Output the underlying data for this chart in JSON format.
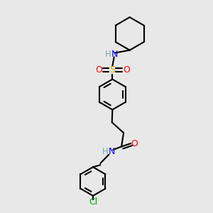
{
  "background_color": "#e8e8e8",
  "bond_color": "#000000",
  "colors": {
    "N": "#0000ff",
    "O": "#ff0000",
    "S": "#ccaa00",
    "Cl": "#00aa00",
    "H": "#6fa8a8",
    "C": "#000000"
  },
  "figsize": [
    3.0,
    3.0
  ],
  "dpi": 100
}
